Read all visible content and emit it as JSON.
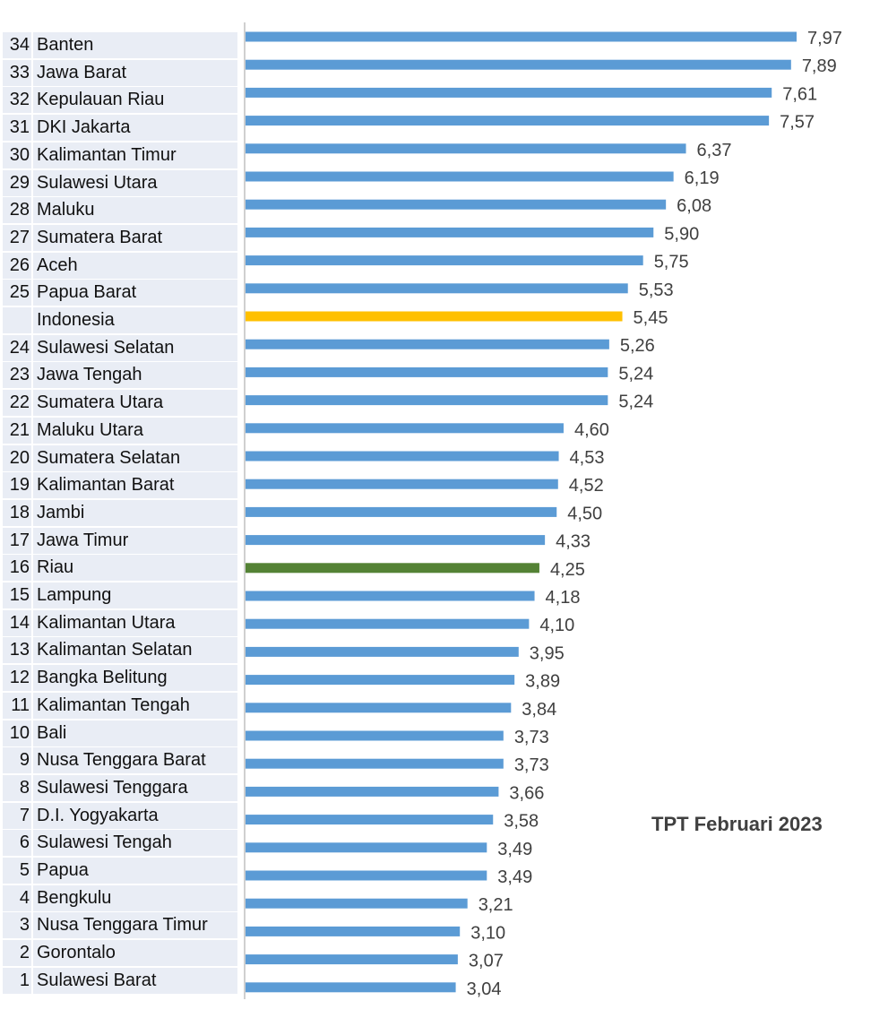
{
  "chart_data": {
    "type": "bar",
    "orientation": "horizontal",
    "title": "TPT Februari 2023",
    "categories": [
      {
        "rank": "34",
        "name": "Banten"
      },
      {
        "rank": "33",
        "name": "Jawa Barat"
      },
      {
        "rank": "32",
        "name": "Kepulauan Riau"
      },
      {
        "rank": "31",
        "name": "DKI Jakarta"
      },
      {
        "rank": "30",
        "name": "Kalimantan Timur"
      },
      {
        "rank": "29",
        "name": "Sulawesi Utara"
      },
      {
        "rank": "28",
        "name": "Maluku"
      },
      {
        "rank": "27",
        "name": "Sumatera Barat"
      },
      {
        "rank": "26",
        "name": "Aceh"
      },
      {
        "rank": "25",
        "name": "Papua Barat"
      },
      {
        "rank": "",
        "name": "Indonesia"
      },
      {
        "rank": "24",
        "name": "Sulawesi Selatan"
      },
      {
        "rank": "23",
        "name": "Jawa Tengah"
      },
      {
        "rank": "22",
        "name": "Sumatera Utara"
      },
      {
        "rank": "21",
        "name": "Maluku Utara"
      },
      {
        "rank": "20",
        "name": "Sumatera Selatan"
      },
      {
        "rank": "19",
        "name": "Kalimantan Barat"
      },
      {
        "rank": "18",
        "name": "Jambi"
      },
      {
        "rank": "17",
        "name": "Jawa Timur"
      },
      {
        "rank": "16",
        "name": "Riau"
      },
      {
        "rank": "15",
        "name": "Lampung"
      },
      {
        "rank": "14",
        "name": "Kalimantan Utara"
      },
      {
        "rank": "13",
        "name": "Kalimantan Selatan"
      },
      {
        "rank": "12",
        "name": "Bangka Belitung"
      },
      {
        "rank": "11",
        "name": "Kalimantan Tengah"
      },
      {
        "rank": "10",
        "name": "Bali"
      },
      {
        "rank": "9",
        "name": "Nusa Tenggara Barat"
      },
      {
        "rank": "8",
        "name": "Sulawesi Tenggara"
      },
      {
        "rank": "7",
        "name": "D.I. Yogyakarta"
      },
      {
        "rank": "6",
        "name": "Sulawesi Tengah"
      },
      {
        "rank": "5",
        "name": "Papua"
      },
      {
        "rank": "4",
        "name": "Bengkulu"
      },
      {
        "rank": "3",
        "name": "Nusa Tenggara Timur"
      },
      {
        "rank": "2",
        "name": "Gorontalo"
      },
      {
        "rank": "1",
        "name": "Sulawesi Barat"
      }
    ],
    "values": [
      7.97,
      7.89,
      7.61,
      7.57,
      6.37,
      6.19,
      6.08,
      5.9,
      5.75,
      5.53,
      5.45,
      5.26,
      5.24,
      5.24,
      4.6,
      4.53,
      4.52,
      4.5,
      4.33,
      4.25,
      4.18,
      4.1,
      3.95,
      3.89,
      3.84,
      3.73,
      3.73,
      3.66,
      3.58,
      3.49,
      3.49,
      3.21,
      3.1,
      3.07,
      3.04
    ],
    "value_labels": [
      "7,97",
      "7,89",
      "7,61",
      "7,57",
      "6,37",
      "6,19",
      "6,08",
      "5,90",
      "5,75",
      "5,53",
      "5,45",
      "5,26",
      "5,24",
      "5,24",
      "4,60",
      "4,53",
      "4,52",
      "4,50",
      "4,33",
      "4,25",
      "4,18",
      "4,10",
      "3,95",
      "3,89",
      "3,84",
      "3,73",
      "3,73",
      "3,66",
      "3,58",
      "3,49",
      "3,49",
      "3,21",
      "3,10",
      "3,07",
      "3,04"
    ],
    "colors": {
      "default": "#5b9bd5",
      "Indonesia": "#ffc000",
      "Riau": "#548235",
      "label_bg": "#e9edf5",
      "value_text": "#404040"
    },
    "xlim": [
      0,
      8
    ],
    "grid": false
  }
}
